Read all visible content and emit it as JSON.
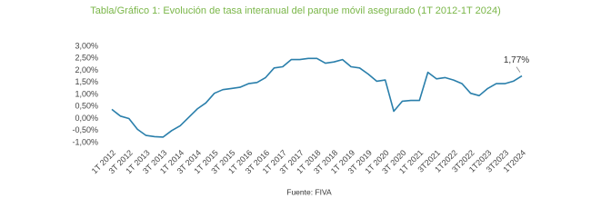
{
  "chart_data": {
    "type": "line",
    "title": "Tabla/Gráfico 1: Evolución de tasa interanual del parque móvil asegurado (1T 2012-1T 2024)",
    "source": "Fuente: FIVA",
    "categories": [
      "1T 2012",
      null,
      "3T 2012",
      null,
      "1T 2013",
      null,
      "3T 2013",
      null,
      "1T 2014",
      null,
      "3T 2014",
      null,
      "1T 2015",
      null,
      "3T 2015",
      null,
      "1T 2016",
      null,
      "3T 2016",
      null,
      "1T 2017",
      null,
      "3T 2017",
      null,
      "1T 2018",
      null,
      "3T 2018",
      null,
      "1T 2019",
      null,
      "3T 2019",
      null,
      "1T 2020",
      null,
      "3T 2020",
      null,
      "1T 2021",
      null,
      "3T2021",
      null,
      "1T2022",
      null,
      "3T2022",
      null,
      "1T2023",
      null,
      "3T2023",
      null,
      "1T2024"
    ],
    "series": [
      {
        "name": "Tasa interanual",
        "color": "#2a7fab",
        "values": [
          0.38,
          0.1,
          0.0,
          -0.45,
          -0.7,
          -0.75,
          -0.77,
          -0.5,
          -0.3,
          0.05,
          0.4,
          0.65,
          1.05,
          1.2,
          1.25,
          1.3,
          1.45,
          1.5,
          1.7,
          2.1,
          2.15,
          2.45,
          2.45,
          2.5,
          2.5,
          2.3,
          2.35,
          2.45,
          2.15,
          2.1,
          1.85,
          1.55,
          1.6,
          0.3,
          0.72,
          0.75,
          0.75,
          1.92,
          1.65,
          1.7,
          1.6,
          1.45,
          1.05,
          0.95,
          1.25,
          1.45,
          1.45,
          1.55,
          1.77
        ],
        "value_labels": [
          null,
          null,
          null,
          null,
          null,
          null,
          null,
          null,
          null,
          null,
          null,
          null,
          null,
          null,
          null,
          null,
          null,
          null,
          null,
          null,
          null,
          null,
          null,
          null,
          null,
          null,
          null,
          null,
          null,
          null,
          null,
          null,
          null,
          null,
          null,
          null,
          null,
          null,
          null,
          null,
          null,
          null,
          null,
          null,
          null,
          null,
          null,
          null,
          "1,77%"
        ]
      }
    ],
    "ylim": [
      -1,
      3
    ],
    "yticks": [
      {
        "value": -1,
        "label": "-1,00%"
      },
      {
        "value": -0.5,
        "label": "-0,50%"
      },
      {
        "value": 0,
        "label": "0,00%"
      },
      {
        "value": 0.5,
        "label": "0,50%"
      },
      {
        "value": 1,
        "label": "1,00%"
      },
      {
        "value": 1.5,
        "label": "1,50%"
      },
      {
        "value": 2,
        "label": "2,00%"
      },
      {
        "value": 2.5,
        "label": "2,50%"
      },
      {
        "value": 3,
        "label": "3,00%"
      }
    ],
    "grid": false
  }
}
